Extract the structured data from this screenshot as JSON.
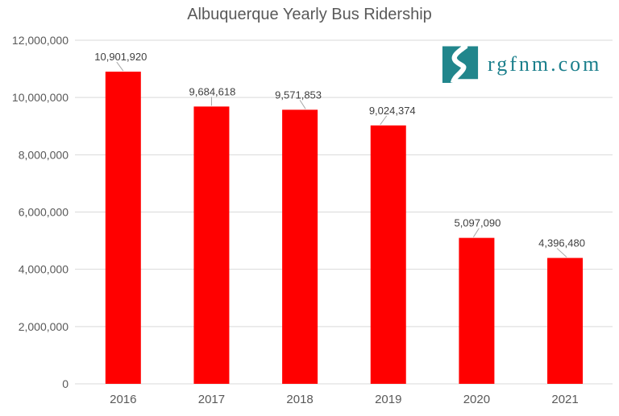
{
  "logo": {
    "text": "rgfnm.com",
    "icon": "new-mexico-river-icon",
    "accent_color": "#1B7F8C"
  },
  "chart_data": {
    "type": "bar",
    "title": "Albuquerque Yearly Bus Ridership",
    "categories": [
      "2016",
      "2017",
      "2018",
      "2019",
      "2020",
      "2021"
    ],
    "values": [
      10901920,
      9684618,
      9571853,
      9024374,
      5097090,
      4396480
    ],
    "data_labels": [
      "10,901,920",
      "9,684,618",
      "9,571,853",
      "9,024,374",
      "5,097,090",
      "4,396,480"
    ],
    "xlabel": "",
    "ylabel": "",
    "ylim": [
      0,
      12000000
    ],
    "ytick_interval": 2000000,
    "ytick_labels": [
      "0",
      "2,000,000",
      "4,000,000",
      "6,000,000",
      "8,000,000",
      "10,000,000",
      "12,000,000"
    ],
    "grid": true,
    "legend": "none",
    "colors": {
      "bar": "#FF0000",
      "gridline": "#D9D9D9",
      "title": "#595959",
      "axis_labels": "#595959",
      "data_labels": "#404040",
      "leader_line": "#A6A6A6"
    }
  }
}
